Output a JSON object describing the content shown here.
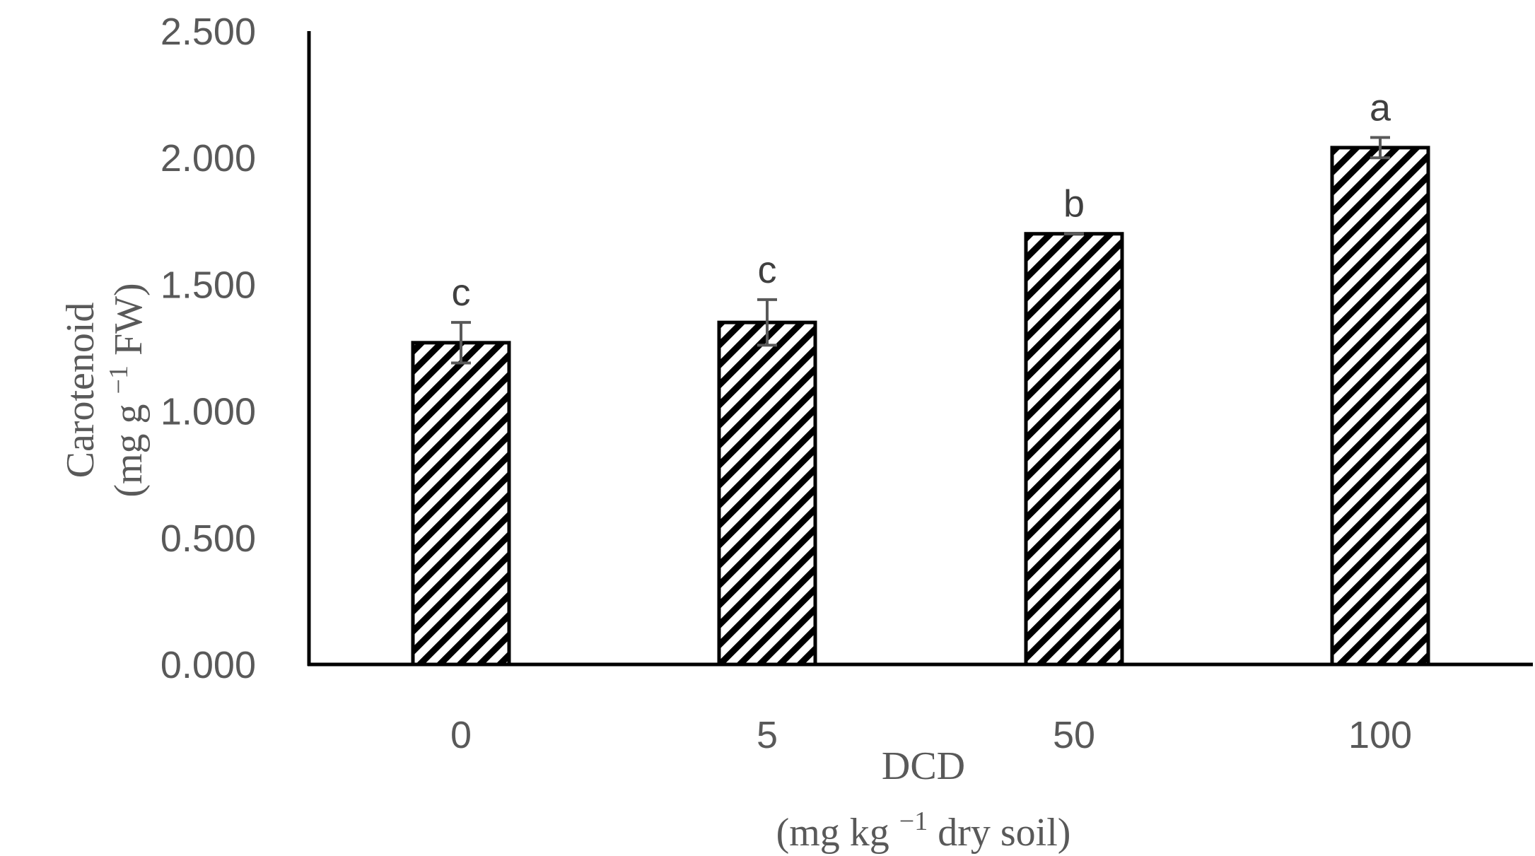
{
  "chart_data": {
    "type": "bar",
    "categories": [
      "0",
      "5",
      "50",
      "100"
    ],
    "values": [
      1.27,
      1.35,
      1.7,
      2.04
    ],
    "errors": [
      0.08,
      0.09,
      0.0,
      0.04
    ],
    "significance_labels": [
      "c",
      "c",
      "b",
      "a"
    ],
    "xlabel": {
      "line1": "DCD",
      "line2_pre": "(mg kg ",
      "line2_sup": "−1",
      "line2_post": " dry soil)"
    },
    "ylabel": {
      "line1": "Carotenoid",
      "line2_pre": "(mg g ",
      "line2_sup": "−1",
      "line2_post": " FW)"
    },
    "ylim": [
      0,
      2.5
    ],
    "yticks": [
      "0.000",
      "0.500",
      "1.000",
      "1.500",
      "2.000",
      "2.500"
    ],
    "grid": false,
    "legend": "none",
    "bar_fill": "diagonal-hatch",
    "bar_color": "#000000",
    "errorbar_color": "#595959"
  }
}
